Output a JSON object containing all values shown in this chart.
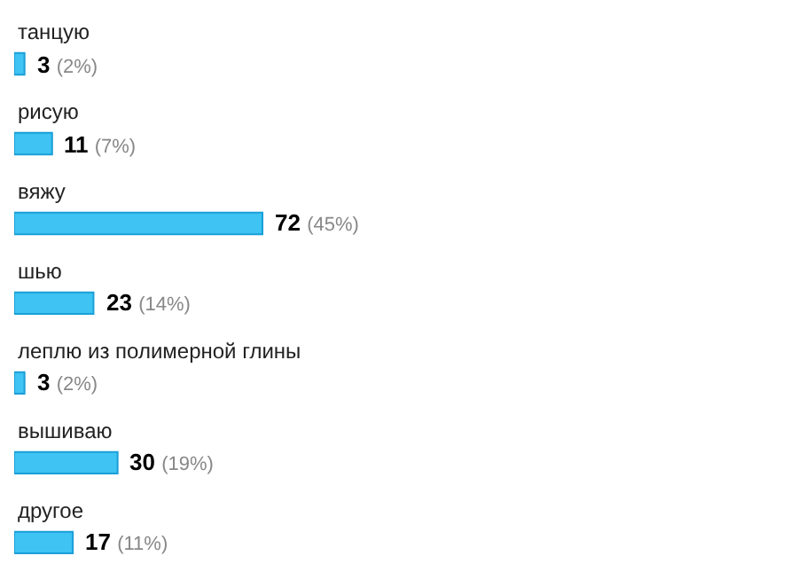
{
  "chart_data": {
    "type": "bar",
    "orientation": "horizontal",
    "categories": [
      "танцую",
      "рисую",
      "вяжу",
      "шью",
      "леплю из полимерной глины",
      "вышиваю",
      "другое"
    ],
    "values": [
      3,
      11,
      72,
      23,
      3,
      30,
      17
    ],
    "value_labels": [
      "3 (2%)",
      "11 (7%)",
      "72 (45%)",
      "23 (14%)",
      "3 (2%)",
      "30 (19%)",
      "17 (11%)"
    ],
    "color": "#3ec3f2"
  }
}
